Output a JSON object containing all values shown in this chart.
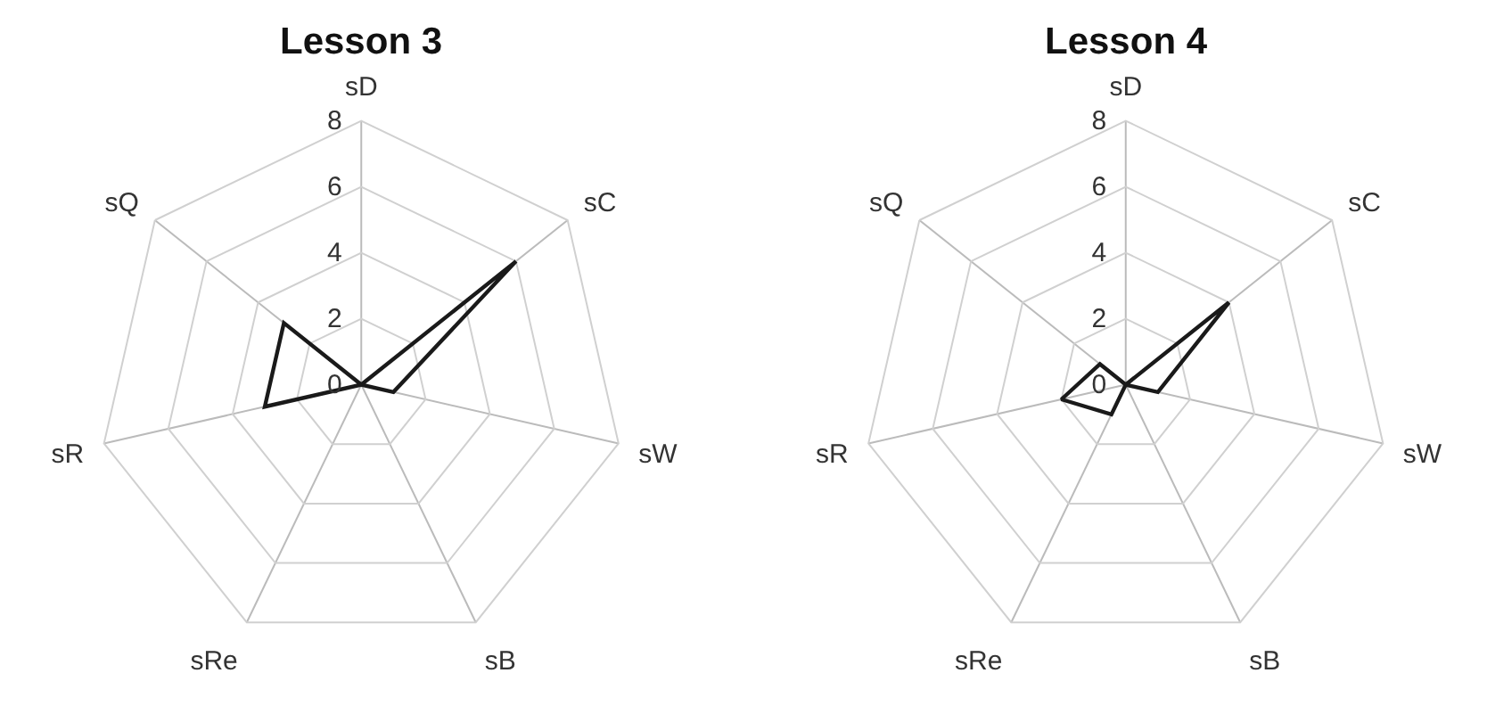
{
  "chart_data": [
    {
      "type": "radar",
      "title": "Lesson 3",
      "categories": [
        "sD",
        "sC",
        "sW",
        "sB",
        "sRe",
        "sR",
        "sQ"
      ],
      "series": [
        {
          "color": "#1a1a1a",
          "values": [
            0,
            6,
            1,
            0,
            0,
            3,
            3
          ]
        }
      ],
      "ylim": [
        0,
        8
      ],
      "yticks": [
        0,
        2,
        4,
        6,
        8
      ],
      "grid": true,
      "marker": "none",
      "line_style": "solid"
    },
    {
      "type": "radar",
      "title": "Lesson 4",
      "categories": [
        "sD",
        "sC",
        "sW",
        "sB",
        "sRe",
        "sR",
        "sQ"
      ],
      "series": [
        {
          "color": "#1a1a1a",
          "values": [
            0,
            4,
            1,
            0,
            1,
            2,
            1
          ]
        }
      ],
      "ylim": [
        0,
        8
      ],
      "yticks": [
        0,
        2,
        4,
        6,
        8
      ],
      "grid": true,
      "marker": "none",
      "line_style": "solid"
    }
  ]
}
